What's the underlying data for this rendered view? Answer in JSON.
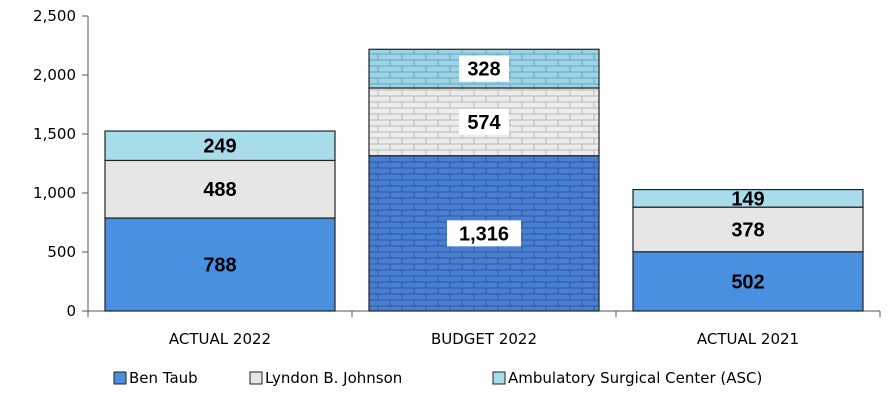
{
  "chart_data": {
    "type": "bar",
    "stacked": true,
    "categories": [
      "ACTUAL 2022",
      "BUDGET 2022",
      "ACTUAL 2021"
    ],
    "series": [
      {
        "name": "Ben Taub",
        "values": [
          788,
          1316,
          502
        ],
        "labels": [
          "788",
          "1,316",
          "502"
        ],
        "color": "#4a90e0"
      },
      {
        "name": "Lyndon B. Johnson",
        "values": [
          488,
          574,
          378
        ],
        "labels": [
          "488",
          "574",
          "378"
        ],
        "color": "#e6e6e6"
      },
      {
        "name": "Ambulatory Surgical Center (ASC)",
        "values": [
          249,
          328,
          149
        ],
        "labels": [
          "249",
          "328",
          "149"
        ],
        "color": "#a8dcea"
      }
    ],
    "patterned_category": "BUDGET 2022",
    "ylim": [
      0,
      2500
    ],
    "yticks": [
      0,
      500,
      1000,
      1500,
      2000,
      2500
    ],
    "ytick_labels": [
      "0",
      "500",
      "1,000",
      "1,500",
      "2,000",
      "2,500"
    ],
    "legend_position": "bottom",
    "grid": false
  }
}
